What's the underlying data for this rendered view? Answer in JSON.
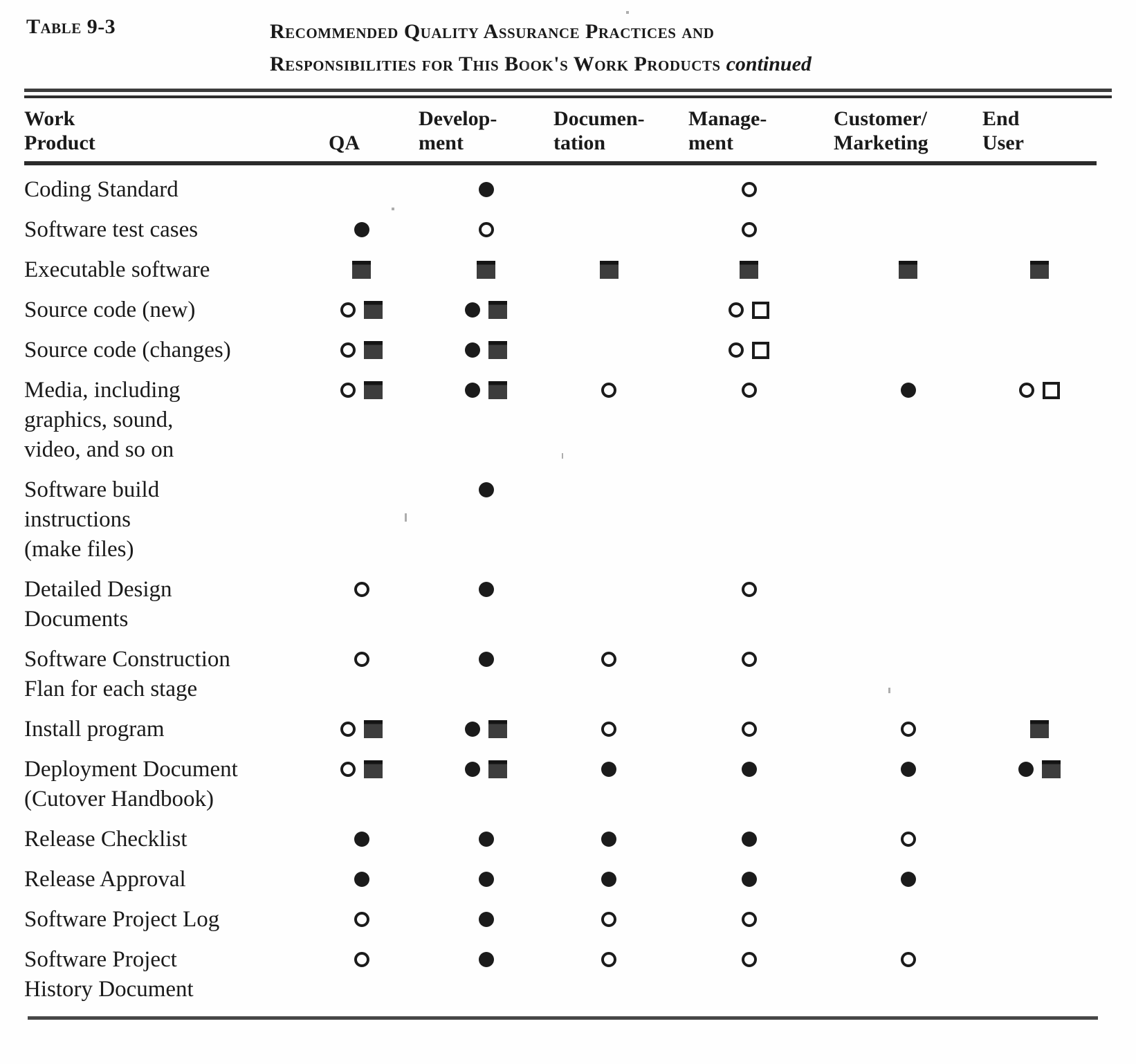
{
  "colors": {
    "ink": "#1a1a1a",
    "square_fill": "#3d3d3d",
    "rule": "#2e2e2e",
    "background": "#fefefe"
  },
  "header": {
    "table_label": "Table 9-3",
    "title_line1": "Recommended Quality Assurance Practices and",
    "title_line2": "Responsibilities for This Book's Work Products",
    "title_continued": "continued"
  },
  "table": {
    "symbol_glyphs": {
      "filled-circle": "●",
      "open-circle": "○",
      "filled-square": "■",
      "open-square": "□"
    },
    "columns": [
      {
        "id": "work_product",
        "lines": [
          "Work",
          "Product"
        ]
      },
      {
        "id": "qa",
        "lines": [
          "",
          "QA"
        ]
      },
      {
        "id": "development",
        "lines": [
          "Develop-",
          "ment"
        ]
      },
      {
        "id": "documentation",
        "lines": [
          "Documen-",
          "tation"
        ]
      },
      {
        "id": "management",
        "lines": [
          "Manage-",
          "ment"
        ]
      },
      {
        "id": "customer_marketing",
        "lines": [
          "Customer/",
          "Marketing"
        ]
      },
      {
        "id": "end_user",
        "lines": [
          "End",
          "User"
        ]
      }
    ],
    "rows": [
      {
        "label_lines": [
          "Coding Standard"
        ],
        "cells": [
          [],
          [
            "filled-circle"
          ],
          [],
          [
            "open-circle"
          ],
          [],
          []
        ]
      },
      {
        "label_lines": [
          "Software test cases"
        ],
        "cells": [
          [
            "filled-circle"
          ],
          [
            "open-circle"
          ],
          [],
          [
            "open-circle"
          ],
          [],
          []
        ]
      },
      {
        "label_lines": [
          "Executable software"
        ],
        "cells": [
          [
            "filled-square"
          ],
          [
            "filled-square"
          ],
          [
            "filled-square"
          ],
          [
            "filled-square"
          ],
          [
            "filled-square"
          ],
          [
            "filled-square"
          ]
        ]
      },
      {
        "label_lines": [
          "Source code (new)"
        ],
        "cells": [
          [
            "open-circle",
            "filled-square"
          ],
          [
            "filled-circle",
            "filled-square"
          ],
          [],
          [
            "open-circle",
            "open-square"
          ],
          [],
          []
        ]
      },
      {
        "label_lines": [
          "Source code (changes)"
        ],
        "cells": [
          [
            "open-circle",
            "filled-square"
          ],
          [
            "filled-circle",
            "filled-square"
          ],
          [],
          [
            "open-circle",
            "open-square"
          ],
          [],
          []
        ]
      },
      {
        "label_lines": [
          "Media, including",
          "graphics, sound,",
          "video, and so on"
        ],
        "cells": [
          [
            "open-circle",
            "filled-square"
          ],
          [
            "filled-circle",
            "filled-square"
          ],
          [
            "open-circle"
          ],
          [
            "open-circle"
          ],
          [
            "filled-circle"
          ],
          [
            "open-circle",
            "open-square"
          ]
        ]
      },
      {
        "label_lines": [
          "Software build",
          "instructions",
          "(make files)"
        ],
        "cells": [
          [],
          [
            "filled-circle"
          ],
          [],
          [],
          [],
          []
        ]
      },
      {
        "label_lines": [
          "Detailed Design",
          "Documents"
        ],
        "cells": [
          [
            "open-circle"
          ],
          [
            "filled-circle"
          ],
          [],
          [
            "open-circle"
          ],
          [],
          []
        ]
      },
      {
        "label_lines": [
          "Software Construction",
          "Flan for each stage"
        ],
        "cells": [
          [
            "open-circle"
          ],
          [
            "filled-circle"
          ],
          [
            "open-circle"
          ],
          [
            "open-circle"
          ],
          [],
          []
        ]
      },
      {
        "label_lines": [
          "Install program"
        ],
        "cells": [
          [
            "open-circle",
            "filled-square"
          ],
          [
            "filled-circle",
            "filled-square"
          ],
          [
            "open-circle"
          ],
          [
            "open-circle"
          ],
          [
            "open-circle"
          ],
          [
            "filled-square"
          ]
        ]
      },
      {
        "label_lines": [
          "Deployment Document",
          "(Cutover Handbook)"
        ],
        "cells": [
          [
            "open-circle",
            "filled-square"
          ],
          [
            "filled-circle",
            "filled-square"
          ],
          [
            "filled-circle"
          ],
          [
            "filled-circle"
          ],
          [
            "filled-circle"
          ],
          [
            "filled-circle",
            "filled-square"
          ]
        ]
      },
      {
        "label_lines": [
          "Release Checklist"
        ],
        "cells": [
          [
            "filled-circle"
          ],
          [
            "filled-circle"
          ],
          [
            "filled-circle"
          ],
          [
            "filled-circle"
          ],
          [
            "open-circle"
          ],
          []
        ]
      },
      {
        "label_lines": [
          "Release Approval"
        ],
        "cells": [
          [
            "filled-circle"
          ],
          [
            "filled-circle"
          ],
          [
            "filled-circle"
          ],
          [
            "filled-circle"
          ],
          [
            "filled-circle"
          ],
          []
        ]
      },
      {
        "label_lines": [
          "Software Project Log"
        ],
        "cells": [
          [
            "open-circle"
          ],
          [
            "filled-circle"
          ],
          [
            "open-circle"
          ],
          [
            "open-circle"
          ],
          [],
          []
        ]
      },
      {
        "label_lines": [
          "Software Project",
          "History Document"
        ],
        "cells": [
          [
            "open-circle"
          ],
          [
            "filled-circle"
          ],
          [
            "open-circle"
          ],
          [
            "open-circle"
          ],
          [
            "open-circle"
          ],
          []
        ]
      }
    ]
  }
}
